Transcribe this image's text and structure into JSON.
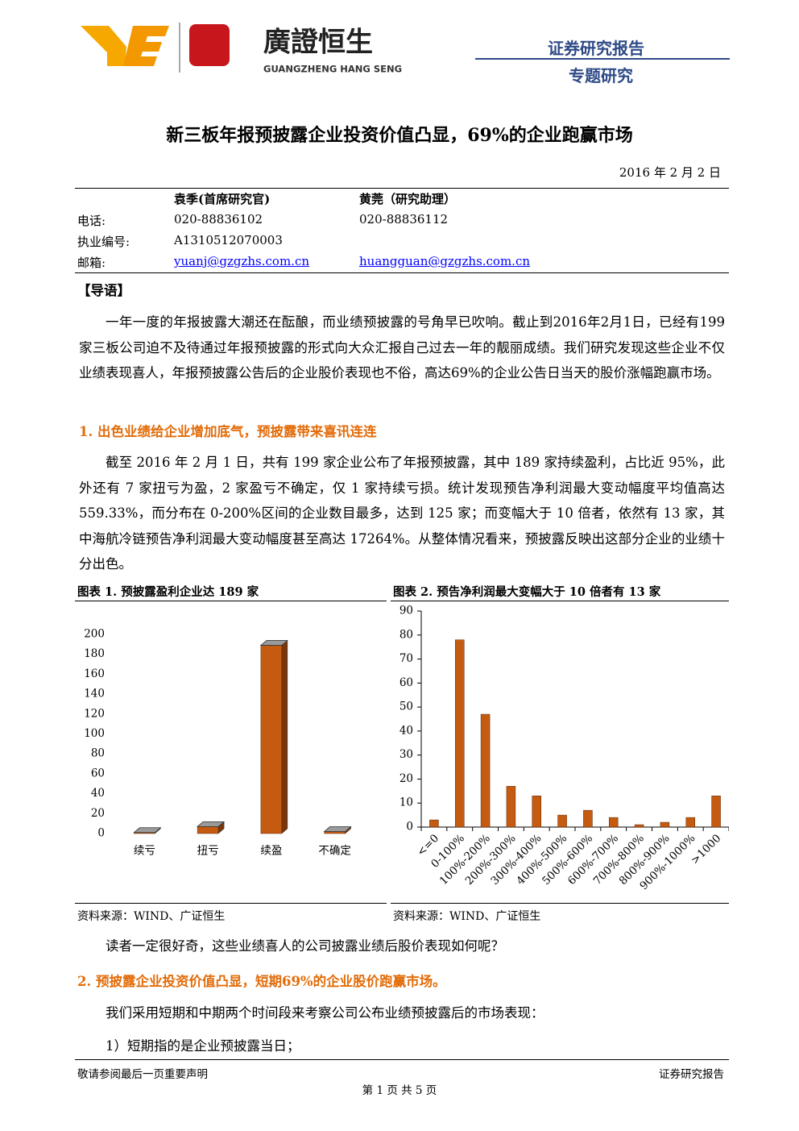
{
  "header": {
    "brand_cn": "廣證恒生",
    "brand_en": "GUANGZHENG HANG SENG",
    "report_type": "证券研究报告",
    "report_kind": "专题研究"
  },
  "title": "新三板年报预披露企业投资价值凸显，69%的企业跑赢市场",
  "date": "2016 年 2 月 2 日",
  "contacts": {
    "labels": [
      "电话:",
      "执业编号:",
      "邮箱:"
    ],
    "authors": [
      {
        "name": "袁季(首席研究官)",
        "phone": "020-88836102",
        "license": "A1310512070003",
        "email": "yuanj@gzgzhs.com.cn"
      },
      {
        "name": "黄莞（研究助理）",
        "phone": "020-88836112",
        "email": "huangguan@gzgzhs.com.cn"
      }
    ]
  },
  "intro_heading": "【导语】",
  "intro": "一年一度的年报披露大潮还在酝酿，而业绩预披露的号角早已吹响。截止到2016年2月1日，已经有199家三板公司迫不及待通过年报预披露的形式向大众汇报自己过去一年的靓丽成绩。我们研究发现这些企业不仅业绩表现喜人，年报预披露公告后的企业股价表现也不俗，高达69%的企业公告日当天的股价涨幅跑赢市场。",
  "section1": {
    "heading": "1. 出色业绩给企业增加底气，预披露带来喜讯连连",
    "paragraph": "截至 2016 年 2 月 1 日，共有 199 家企业公布了年报预披露，其中 189 家持续盈利，占比近 95%，此外还有 7 家扭亏为盈，2 家盈亏不确定，仅 1 家持续亏损。统计发现预告净利润最大变动幅度平均值高达 559.33%，而分布在 0-200%区间的企业数目最多，达到 125 家；而变幅大于 10 倍者，依然有 13 家，其中海航冷链预告净利润最大变动幅度甚至高达 17264%。从整体情况看来，预披露反映出这部分企业的业绩十分出色。"
  },
  "chart_data": [
    {
      "type": "bar",
      "title": "图表 1. 预披露盈利企业达 189 家",
      "source": "资料来源：WIND、广证恒生",
      "categories": [
        "续亏",
        "扭亏",
        "续盈",
        "不确定"
      ],
      "values": [
        1,
        7,
        189,
        2
      ],
      "color": "#c55a11",
      "bar_3d": true,
      "ylim": [
        0,
        200
      ],
      "yticks": [
        0,
        20,
        40,
        60,
        80,
        100,
        120,
        140,
        160,
        180,
        200
      ]
    },
    {
      "type": "bar",
      "title": "图表 2. 预告净利润最大变幅大于 10 倍者有 13 家",
      "source": "资料来源：WIND、广证恒生",
      "categories": [
        "<=0",
        "0-100%",
        "100%-200%",
        "200%-300%",
        "300%-400%",
        "400%-500%",
        "500%-600%",
        "600%-700%",
        "700%-800%",
        "800%-900%",
        "900%-1000%",
        ">1000"
      ],
      "values": [
        3,
        78,
        47,
        17,
        13,
        5,
        7,
        4,
        1,
        2,
        4,
        13
      ],
      "color": "#c55a11",
      "bar_3d": false,
      "ylim": [
        0,
        90
      ],
      "yticks": [
        0,
        10,
        20,
        30,
        40,
        50,
        60,
        70,
        80,
        90
      ]
    }
  ],
  "after_charts": "读者一定很好奇，这些业绩喜人的公司披露业绩后股价表现如何呢？",
  "section2": {
    "heading": "2. 预披露企业投资价值凸显，短期69%的企业股价跑赢市场。",
    "paragraph": "我们采用短期和中期两个时间段来考察公司公布业绩预披露后的市场表现：",
    "item": "1）短期指的是企业预披露当日；"
  },
  "footer": {
    "left": "敬请参阅最后一页重要声明",
    "right": "证券研究报告",
    "page": "第 1 页 共 5 页"
  }
}
